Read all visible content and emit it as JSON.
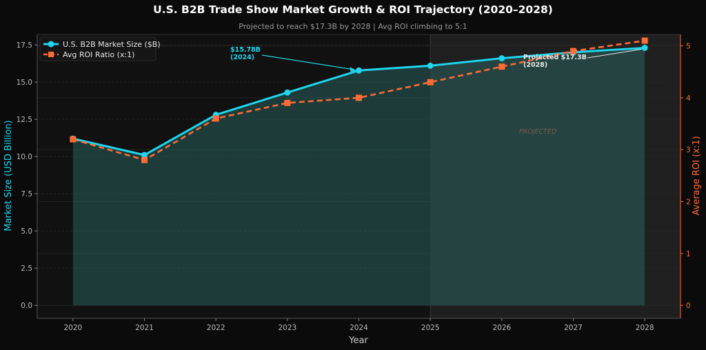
{
  "colors": {
    "background": "#0b0b0b",
    "plot_background": "#111111",
    "projected_band": "#1f1f1f",
    "market": "#1fd6ee",
    "roi": "#ff6b35",
    "area_fill": "#2b6f6a",
    "grid": "#2a2a2a"
  },
  "chart_data": {
    "type": "line",
    "title": "U.S. B2B Trade Show Market Growth & ROI Trajectory (2020–2028)",
    "subtitle": "Projected to reach $17.3B by 2028 | Avg ROI climbing to 5:1",
    "xlabel": "Year",
    "ylabel_left": "Market Size (USD Billion)",
    "ylabel_right": "Average ROI (x:1)",
    "x": [
      2020,
      2021,
      2022,
      2023,
      2024,
      2025,
      2026,
      2027,
      2028
    ],
    "x_tick_labels": [
      "2020",
      "2021",
      "2022",
      "2023",
      "2024",
      "2025",
      "2026",
      "2027",
      "2028"
    ],
    "xlim": [
      2019.5,
      2028.5
    ],
    "ylim_left": [
      -0.87,
      18.2
    ],
    "ylim_right": [
      -0.25,
      5.22
    ],
    "y_ticks_left": [
      "0.0",
      "2.5",
      "5.0",
      "7.5",
      "10.0",
      "12.5",
      "15.0",
      "17.5"
    ],
    "y_ticks_right": [
      "0",
      "1",
      "2",
      "3",
      "4",
      "5"
    ],
    "grid": true,
    "legend_position": "top-left",
    "projected_region_start": 2025,
    "series": [
      {
        "name": "U.S. B2B Market Size ($B)",
        "axis": "left",
        "marker": "circle",
        "style": "solid",
        "values": [
          11.2,
          10.1,
          12.8,
          14.3,
          15.78,
          16.1,
          16.6,
          17.0,
          17.3
        ]
      },
      {
        "name": "Avg ROI Ratio (x:1)",
        "axis": "right",
        "marker": "square",
        "style": "dashed",
        "values": [
          3.2,
          2.8,
          3.6,
          3.9,
          4.0,
          4.3,
          4.6,
          4.9,
          5.1
        ]
      }
    ],
    "annotations": [
      {
        "text_line1": "$15.78B",
        "text_line2": "(2024)",
        "x": 2024,
        "y": 15.78,
        "color": "#1fd6ee"
      },
      {
        "text_line1": "Projected $17.3B",
        "text_line2": "(2028)",
        "x": 2028,
        "y": 17.3,
        "color": "#e8e8e8"
      }
    ],
    "region_label": "PROJECTED"
  }
}
